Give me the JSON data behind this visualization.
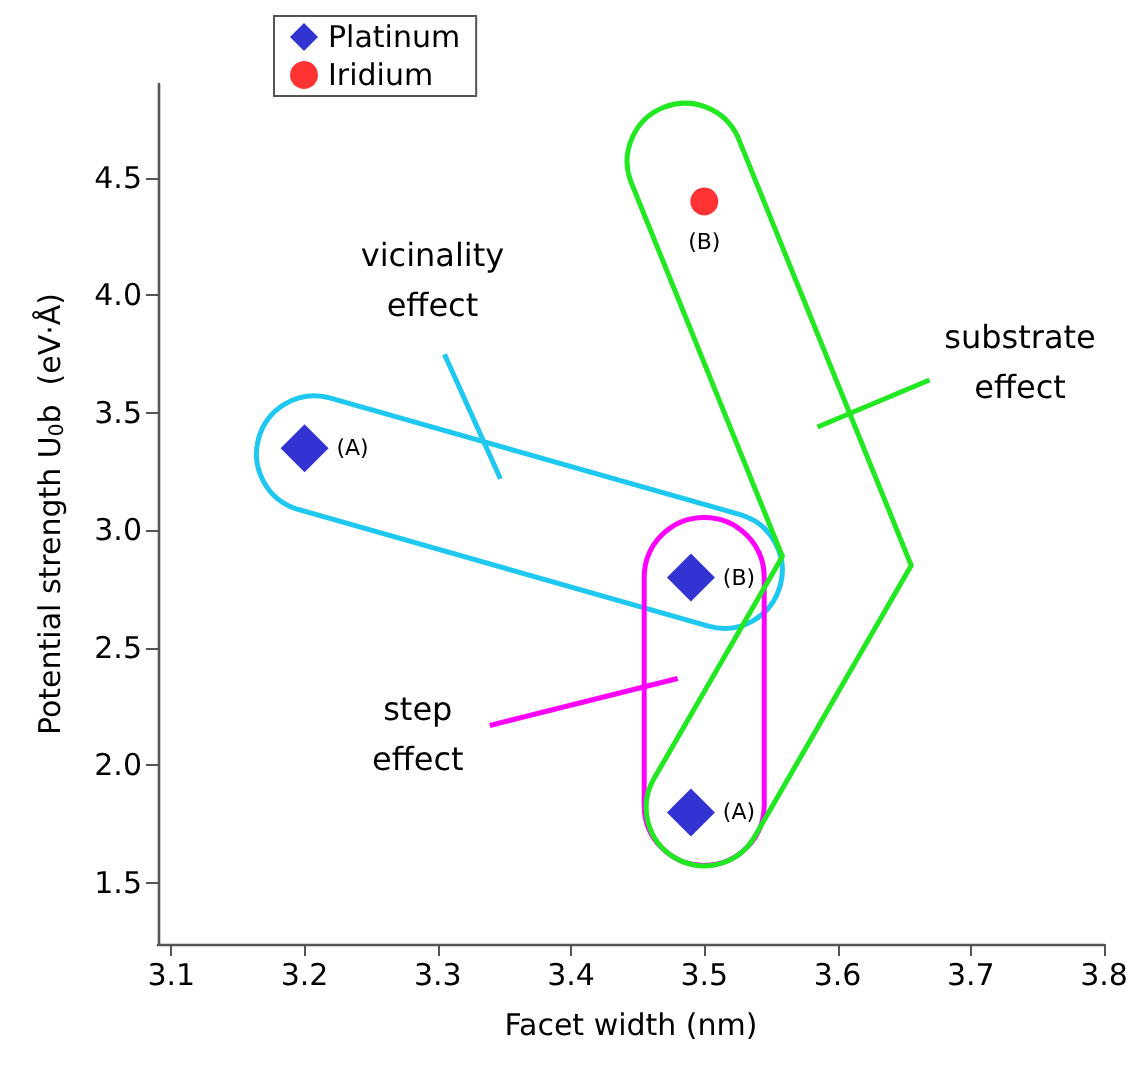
{
  "chart_data": {
    "type": "scatter",
    "xlabel": "Facet width (nm)",
    "ylabel": "Potential strength U$_{0}$b  (eV·Å)",
    "xlim": [
      3.09,
      3.8
    ],
    "xticks": [
      3.1,
      3.2,
      3.3,
      3.4,
      3.5,
      3.6,
      3.7,
      3.8
    ],
    "ylim": [
      1.24,
      4.9
    ],
    "yticks": [
      1.5,
      {
        "value": 2,
        "label": "2.0"
      },
      2.5,
      {
        "value": 3,
        "label": "3.0"
      },
      3.5,
      {
        "value": 4,
        "label": "4.0"
      },
      4.5
    ],
    "grid": false,
    "legend": "top left",
    "series": [
      {
        "name": "Platinum",
        "color": "#0000c8",
        "marker": "diamond",
        "x": [
          3.2,
          3.49,
          3.49
        ],
        "values": [
          3.35,
          2.8,
          1.8
        ]
      },
      {
        "name": "Iridium",
        "color": "#ff0000",
        "marker": "circle",
        "x": [
          3.5
        ],
        "values": [
          4.4
        ]
      }
    ],
    "annotations": [
      {
        "text": "(A)",
        "x": 3.2,
        "y": 3.35
      },
      {
        "text": "(B)",
        "x": 3.49,
        "y": 2.8
      },
      {
        "text": "(A)",
        "x": 3.49,
        "y": 1.8
      },
      {
        "text": "(B)",
        "x": 3.5,
        "y": 4.4
      },
      "vicinality effect",
      "step effect",
      "substrate effect"
    ]
  }
}
